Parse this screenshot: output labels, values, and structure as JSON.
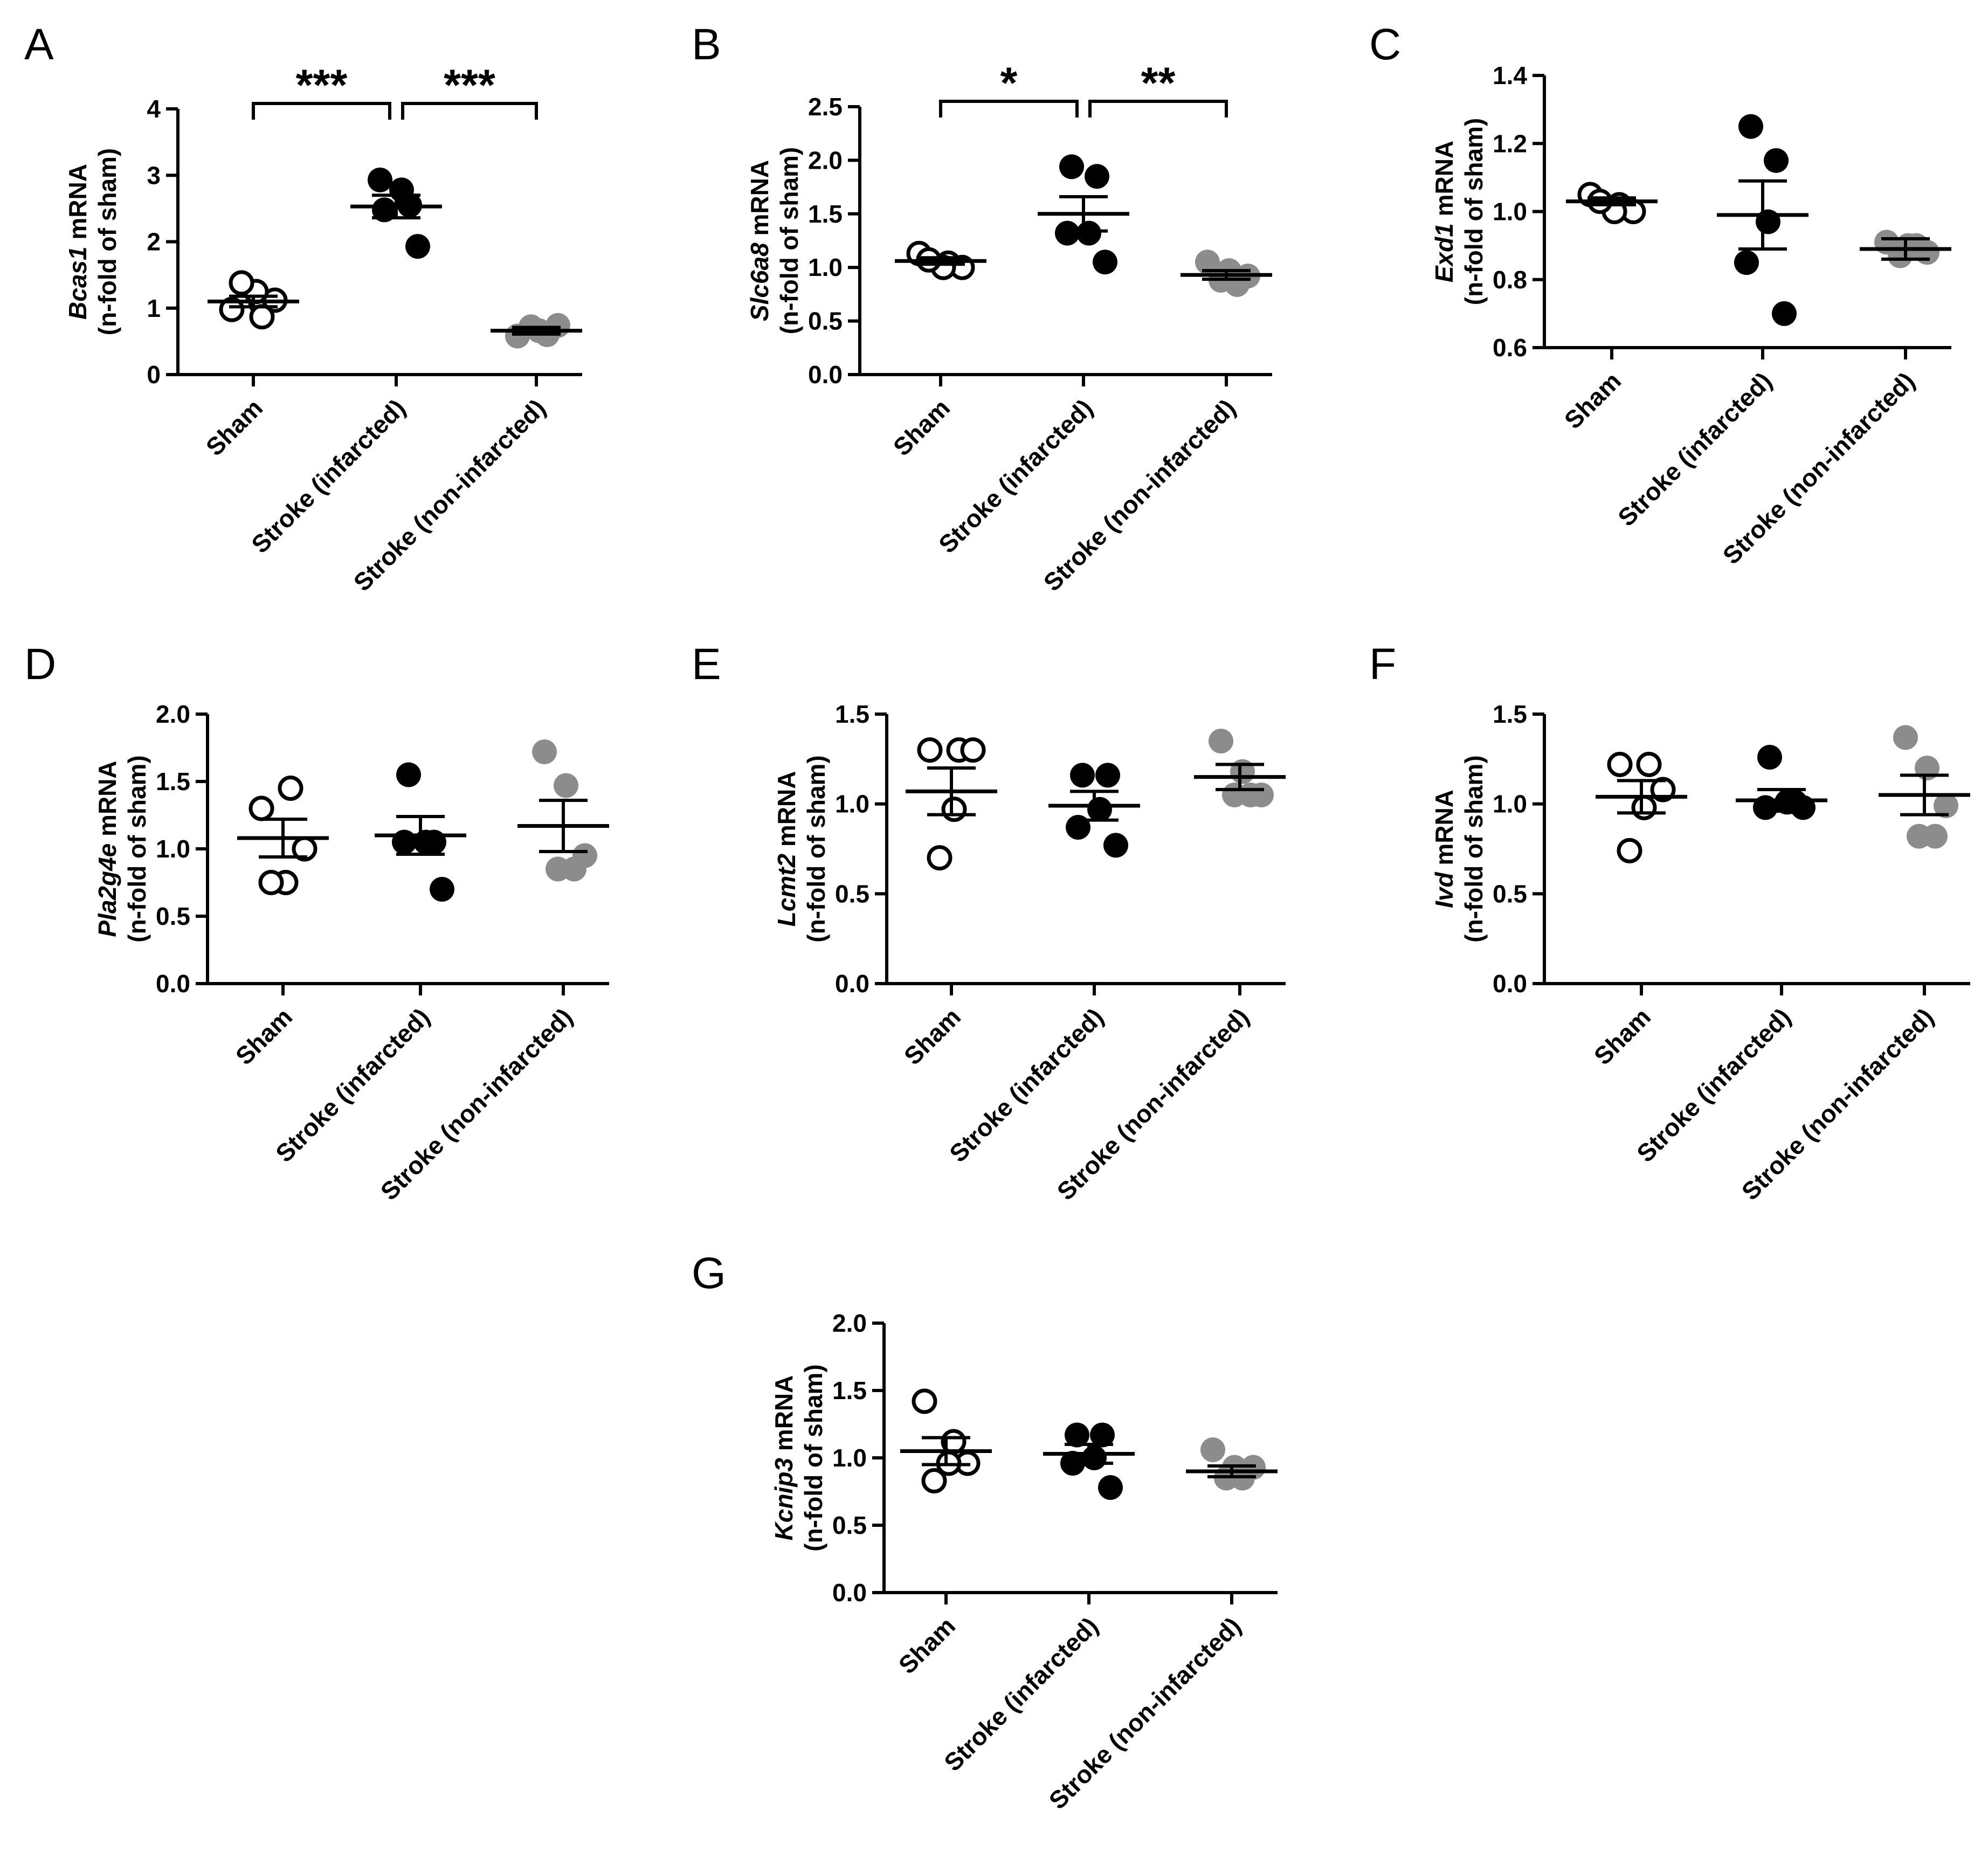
{
  "figure": {
    "categories": [
      "Sham",
      "Stroke (infarcted)",
      "Stroke (non-infarcted)"
    ],
    "ylabel_unit": "mRNA",
    "ylabel_line2": "(n-fold of sham)",
    "colors": {
      "sham_fill": "#ffffff",
      "infarcted_fill": "#000000",
      "noninfarcted_fill": "#8c8c8c",
      "axis": "#000000"
    }
  },
  "chart_data": [
    {
      "type": "scatter",
      "panel": "A",
      "gene": "Bcas1",
      "ylabel": "Bcas1 mRNA (n-fold of sham)",
      "ylim": [
        0,
        4
      ],
      "yticks": [
        0,
        1,
        2,
        3,
        4
      ],
      "ytick_labels": [
        "0",
        "1",
        "2",
        "3",
        "4"
      ],
      "series": [
        {
          "name": "Sham",
          "points": [
            0.98,
            1.08,
            1.12,
            1.25,
            1.38,
            0.87
          ],
          "mean": 1.1,
          "sem": 0.08
        },
        {
          "name": "Stroke (infarcted)",
          "points": [
            2.48,
            2.55,
            2.78,
            2.93,
            1.93
          ],
          "mean": 2.53,
          "sem": 0.17
        },
        {
          "name": "Stroke (non-infarcted)",
          "points": [
            0.58,
            0.66,
            0.74,
            0.72,
            0.6
          ],
          "mean": 0.66,
          "sem": 0.05
        }
      ],
      "significance": [
        {
          "from": 0,
          "to": 1,
          "label": "***"
        },
        {
          "from": 1,
          "to": 2,
          "label": "***"
        }
      ]
    },
    {
      "type": "scatter",
      "panel": "B",
      "gene": "Slc6a8",
      "ylabel": "Slc6a8 mRNA (n-fold of sham)",
      "ylim": [
        0,
        2.5
      ],
      "yticks": [
        0,
        0.5,
        1,
        1.5,
        2,
        2.5
      ],
      "ytick_labels": [
        "0.0",
        "0.5",
        "1.0",
        "1.5",
        "2.0",
        "2.5"
      ],
      "series": [
        {
          "name": "Sham",
          "points": [
            1.13,
            1.04,
            1.0,
            1.0,
            1.07
          ],
          "mean": 1.06,
          "sem": 0.03
        },
        {
          "name": "Stroke (infarcted)",
          "points": [
            1.94,
            1.85,
            1.32,
            1.32,
            1.05
          ],
          "mean": 1.5,
          "sem": 0.16
        },
        {
          "name": "Stroke (non-infarcted)",
          "points": [
            1.05,
            0.97,
            0.92,
            0.88,
            0.84
          ],
          "mean": 0.93,
          "sem": 0.04
        }
      ],
      "significance": [
        {
          "from": 0,
          "to": 1,
          "label": "*"
        },
        {
          "from": 1,
          "to": 2,
          "label": "**"
        }
      ]
    },
    {
      "type": "scatter",
      "panel": "C",
      "gene": "Exd1",
      "ylabel": "Exd1 mRNA (n-fold of sham)",
      "ylim": [
        0.6,
        1.4
      ],
      "yticks": [
        0.6,
        0.8,
        1.0,
        1.2,
        1.4
      ],
      "ytick_labels": [
        "0.6",
        "0.8",
        "1.0",
        "1.2",
        "1.4"
      ],
      "series": [
        {
          "name": "Sham",
          "points": [
            1.05,
            1.02,
            1.0,
            1.0,
            1.03
          ],
          "mean": 1.03,
          "sem": 0.01
        },
        {
          "name": "Stroke (infarcted)",
          "points": [
            1.25,
            1.15,
            0.97,
            0.85,
            0.7
          ],
          "mean": 0.99,
          "sem": 0.1
        },
        {
          "name": "Stroke (non-infarcted)",
          "points": [
            0.91,
            0.9,
            0.88,
            0.87,
            0.9
          ],
          "mean": 0.89,
          "sem": 0.03
        }
      ],
      "significance": []
    },
    {
      "type": "scatter",
      "panel": "D",
      "gene": "Pla2g4e",
      "ylabel": "Pla2g4e mRNA (n-fold of sham)",
      "ylim": [
        0,
        2
      ],
      "yticks": [
        0,
        0.5,
        1,
        1.5,
        2
      ],
      "ytick_labels": [
        "0.0",
        "0.5",
        "1.0",
        "1.5",
        "2.0"
      ],
      "series": [
        {
          "name": "Sham",
          "points": [
            1.3,
            1.45,
            1.0,
            0.75,
            0.75
          ],
          "mean": 1.08,
          "sem": 0.14
        },
        {
          "name": "Stroke (infarcted)",
          "points": [
            1.55,
            1.05,
            1.05,
            1.05,
            0.7
          ],
          "mean": 1.1,
          "sem": 0.14
        },
        {
          "name": "Stroke (non-infarcted)",
          "points": [
            1.72,
            1.47,
            0.95,
            0.85,
            0.85
          ],
          "mean": 1.17,
          "sem": 0.19
        }
      ],
      "significance": []
    },
    {
      "type": "scatter",
      "panel": "E",
      "gene": "Lcmt2",
      "ylabel": "Lcmt2 mRNA (n-fold of sham)",
      "ylim": [
        0,
        1.5
      ],
      "yticks": [
        0,
        0.5,
        1,
        1.5
      ],
      "ytick_labels": [
        "0.0",
        "0.5",
        "1.0",
        "1.5"
      ],
      "series": [
        {
          "name": "Sham",
          "points": [
            1.3,
            1.3,
            1.3,
            0.97,
            0.7
          ],
          "mean": 1.07,
          "sem": 0.13
        },
        {
          "name": "Stroke (infarcted)",
          "points": [
            1.16,
            1.16,
            0.97,
            0.87,
            0.77
          ],
          "mean": 0.99,
          "sem": 0.08
        },
        {
          "name": "Stroke (non-infarcted)",
          "points": [
            1.35,
            1.18,
            1.05,
            1.05,
            1.05
          ],
          "mean": 1.15,
          "sem": 0.07
        }
      ],
      "significance": []
    },
    {
      "type": "scatter",
      "panel": "F",
      "gene": "Ivd",
      "ylabel": "Ivd mRNA (n-fold of sham)",
      "ylim": [
        0,
        1.5
      ],
      "yticks": [
        0,
        0.5,
        1,
        1.5
      ],
      "ytick_labels": [
        "0.0",
        "0.5",
        "1.0",
        "1.5"
      ],
      "series": [
        {
          "name": "Sham",
          "points": [
            1.22,
            1.22,
            1.08,
            0.98,
            0.74
          ],
          "mean": 1.04,
          "sem": 0.09
        },
        {
          "name": "Stroke (infarcted)",
          "points": [
            1.26,
            1.01,
            1.01,
            0.98,
            0.98
          ],
          "mean": 1.02,
          "sem": 0.06
        },
        {
          "name": "Stroke (non-infarcted)",
          "points": [
            1.37,
            1.2,
            0.99,
            0.82,
            0.82
          ],
          "mean": 1.05,
          "sem": 0.11
        }
      ],
      "significance": []
    },
    {
      "type": "scatter",
      "panel": "G",
      "gene": "Kcnip3",
      "ylabel": "Kcnip3 mRNA (n-fold of sham)",
      "ylim": [
        0,
        2
      ],
      "yticks": [
        0,
        0.5,
        1,
        1.5,
        2
      ],
      "ytick_labels": [
        "0.0",
        "0.5",
        "1.0",
        "1.5",
        "2.0"
      ],
      "series": [
        {
          "name": "Sham",
          "points": [
            1.42,
            1.12,
            0.96,
            0.96,
            0.83
          ],
          "mean": 1.05,
          "sem": 0.1
        },
        {
          "name": "Stroke (infarcted)",
          "points": [
            1.17,
            1.17,
            1.0,
            0.96,
            0.78
          ],
          "mean": 1.03,
          "sem": 0.07
        },
        {
          "name": "Stroke (non-infarcted)",
          "points": [
            1.06,
            0.93,
            0.93,
            0.85,
            0.85
          ],
          "mean": 0.9,
          "sem": 0.04
        }
      ],
      "significance": []
    }
  ]
}
